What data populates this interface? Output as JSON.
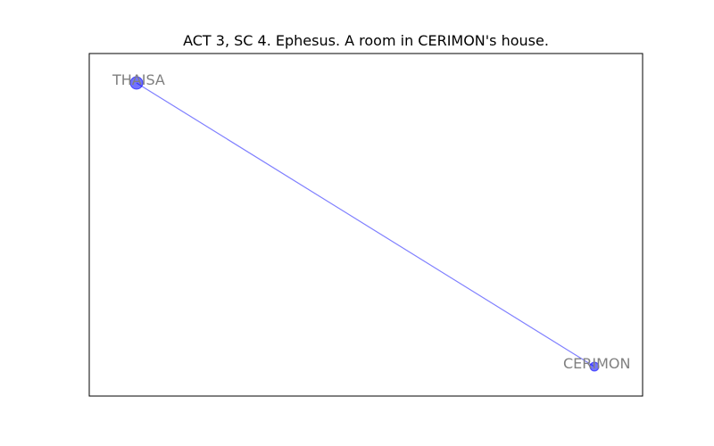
{
  "title": "ACT 3, SC 4. Ephesus. A room in CERIMON's house.",
  "colors": {
    "node": "#0000ff",
    "edge": "#0000ff",
    "label": "#808080",
    "frame": "#000000"
  },
  "graph": {
    "nodes": [
      {
        "id": "THAISA",
        "label": "THAISA",
        "size": "large"
      },
      {
        "id": "CERIMON",
        "label": "CERIMON",
        "size": "small"
      }
    ],
    "edges": [
      {
        "source": "THAISA",
        "target": "CERIMON"
      }
    ]
  }
}
